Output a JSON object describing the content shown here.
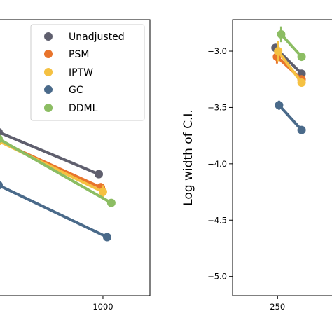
{
  "colors": {
    "Unadjusted": "#5f5f6e",
    "PSM": "#e8742c",
    "IPTW": "#f5c142",
    "GC": "#4a6a8a",
    "DDML": "#8cbd63"
  },
  "chart_data": [
    {
      "type": "line",
      "title": "",
      "xlabel": "",
      "ylabel": "",
      "xlim": [
        0,
        1450
      ],
      "ylim": [
        -5.1,
        -2.6
      ],
      "x_ticks": [
        1000
      ],
      "x_tick_labels": [
        "1000"
      ],
      "grid": false,
      "legend": {
        "placement": "top-right",
        "entries": [
          "Unadjusted",
          "PSM",
          "IPTW",
          "GC",
          "DDML"
        ]
      },
      "series": [
        {
          "name": "Unadjusted",
          "color_key": "Unadjusted",
          "points": [
            {
              "x": 0,
              "y": -3.62,
              "err": 0
            },
            {
              "x": 960,
              "y": -4.0,
              "err": 0.01
            }
          ]
        },
        {
          "name": "PSM",
          "color_key": "PSM",
          "points": [
            {
              "x": 0,
              "y": -3.7,
              "err": 0
            },
            {
              "x": 980,
              "y": -4.12,
              "err": 0.04
            }
          ]
        },
        {
          "name": "IPTW",
          "color_key": "IPTW",
          "points": [
            {
              "x": 0,
              "y": -3.7,
              "err": 0
            },
            {
              "x": 1000,
              "y": -4.16,
              "err": 0.06
            }
          ]
        },
        {
          "name": "GC",
          "color_key": "GC",
          "points": [
            {
              "x": 0,
              "y": -4.1,
              "err": 0
            },
            {
              "x": 1040,
              "y": -4.57,
              "err": 0.01
            }
          ]
        },
        {
          "name": "DDML",
          "color_key": "DDML",
          "points": [
            {
              "x": 0,
              "y": -3.68,
              "err": 0
            },
            {
              "x": 1080,
              "y": -4.26,
              "err": 0.01
            }
          ]
        }
      ]
    },
    {
      "type": "line",
      "title": "",
      "xlabel": "",
      "ylabel": "Log width of C.I.",
      "xlim": [
        100,
        450
      ],
      "ylim": [
        -5.17,
        -2.72
      ],
      "y_ticks": [
        -3.0,
        -3.5,
        -4.0,
        -4.5,
        -5.0
      ],
      "y_tick_labels": [
        "−3.0",
        "−3.5",
        "−4.0",
        "−4.5",
        "−5.0"
      ],
      "x_ticks": [
        250
      ],
      "x_tick_labels": [
        "250"
      ],
      "grid": false,
      "series": [
        {
          "name": "Unadjusted",
          "color_key": "Unadjusted",
          "points": [
            {
              "x": 243,
              "y": -2.97,
              "err": 0.02
            },
            {
              "x": 330,
              "y": -3.2,
              "err": 0
            }
          ]
        },
        {
          "name": "PSM",
          "color_key": "PSM",
          "points": [
            {
              "x": 248,
              "y": -3.05,
              "err": 0.06
            },
            {
              "x": 330,
              "y": -3.25,
              "err": 0
            }
          ]
        },
        {
          "name": "IPTW",
          "color_key": "IPTW",
          "points": [
            {
              "x": 252,
              "y": -3.0,
              "err": 0.09
            },
            {
              "x": 330,
              "y": -3.28,
              "err": 0
            }
          ]
        },
        {
          "name": "GC",
          "color_key": "GC",
          "points": [
            {
              "x": 255,
              "y": -3.48,
              "err": 0.04
            },
            {
              "x": 330,
              "y": -3.7,
              "err": 0
            }
          ]
        },
        {
          "name": "DDML",
          "color_key": "DDML",
          "points": [
            {
              "x": 262,
              "y": -2.85,
              "err": 0.07
            },
            {
              "x": 330,
              "y": -3.05,
              "err": 0
            }
          ]
        }
      ]
    }
  ]
}
